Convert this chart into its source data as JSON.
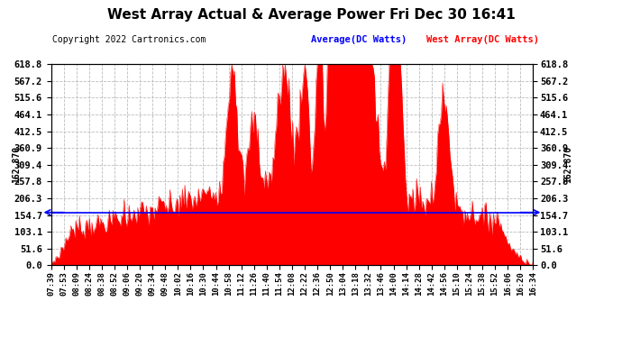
{
  "title": "West Array Actual & Average Power Fri Dec 30 16:41",
  "copyright": "Copyright 2022 Cartronics.com",
  "ylabel_both": "162.870",
  "avg_value": 162.87,
  "ymax": 618.8,
  "ymin": 0.0,
  "yticks": [
    0.0,
    51.6,
    103.1,
    154.7,
    206.3,
    257.8,
    309.4,
    360.9,
    412.5,
    464.1,
    515.6,
    567.2,
    618.8
  ],
  "legend_avg_label": "Average(DC Watts)",
  "legend_west_label": "West Array(DC Watts)",
  "avg_color": "#0000ff",
  "west_color": "#ff0000",
  "fill_color": "#ff0000",
  "background_color": "#ffffff",
  "grid_color": "#bbbbbb",
  "title_fontsize": 11,
  "copyright_fontsize": 7,
  "tick_fontsize": 6.5,
  "ytick_fontsize": 7.5,
  "legend_fontsize": 7.5,
  "xtick_labels": [
    "07:39",
    "07:53",
    "08:09",
    "08:24",
    "08:38",
    "08:52",
    "09:06",
    "09:20",
    "09:34",
    "09:48",
    "10:02",
    "10:16",
    "10:30",
    "10:44",
    "10:58",
    "11:12",
    "11:26",
    "11:40",
    "11:54",
    "12:08",
    "12:22",
    "12:36",
    "12:50",
    "13:04",
    "13:18",
    "13:32",
    "13:46",
    "14:00",
    "14:14",
    "14:28",
    "14:42",
    "14:56",
    "15:10",
    "15:24",
    "15:38",
    "15:52",
    "16:06",
    "16:20",
    "16:34"
  ],
  "num_points": 390
}
